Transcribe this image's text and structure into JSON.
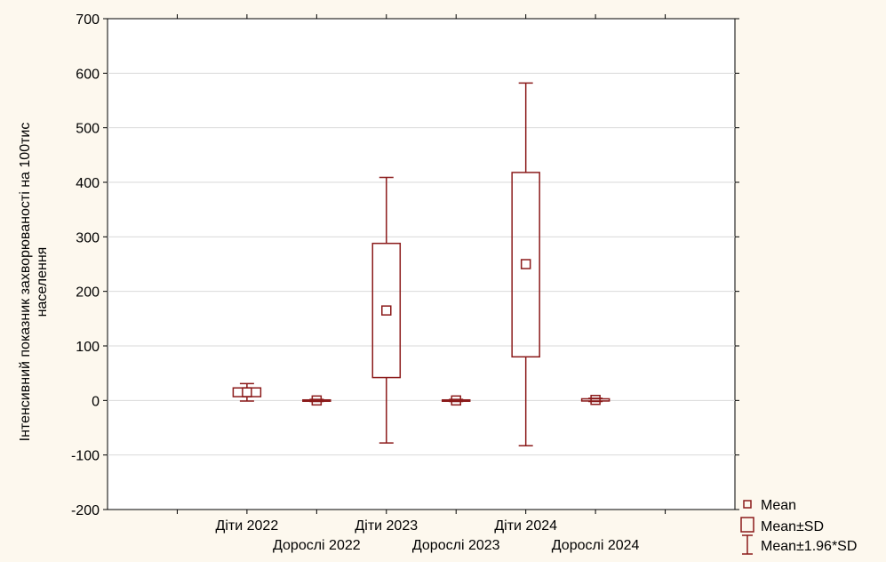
{
  "chart_data": {
    "type": "box",
    "title": "",
    "ylabel_lines": [
      "Інтенсивний показник захворюваності на 100тис",
      "населення"
    ],
    "xlabel": "",
    "ylim": [
      -200,
      700
    ],
    "yticks": [
      -200,
      -100,
      0,
      100,
      200,
      300,
      400,
      500,
      600,
      700
    ],
    "grid": true,
    "colors": {
      "series": "#8b1a1a",
      "background": "#fdf8ee",
      "plot": "#ffffff",
      "grid": "#d9d9d9"
    },
    "categories": [
      "Діти 2022",
      "Дорослі 2022",
      "Діти 2023",
      "Дорослі 2023",
      "Діти 2024",
      "Дорослі 2024"
    ],
    "mean": [
      15,
      0,
      165,
      0,
      250,
      1
    ],
    "mean_minus_sd": [
      7,
      -1,
      42,
      -1,
      80,
      -1
    ],
    "mean_plus_sd": [
      23,
      1,
      288,
      1,
      418,
      3
    ],
    "mean_minus_196sd": [
      -1,
      -2,
      -78,
      -2,
      -83,
      -2
    ],
    "mean_plus_196sd": [
      31,
      2,
      409,
      2,
      582,
      4
    ],
    "legend": {
      "position": "bottom-right",
      "items": [
        {
          "symbol": "mean-marker",
          "label": "Mean"
        },
        {
          "symbol": "box",
          "label": "Mean±SD"
        },
        {
          "symbol": "whisker",
          "label": "Mean±1.96*SD"
        }
      ]
    }
  }
}
